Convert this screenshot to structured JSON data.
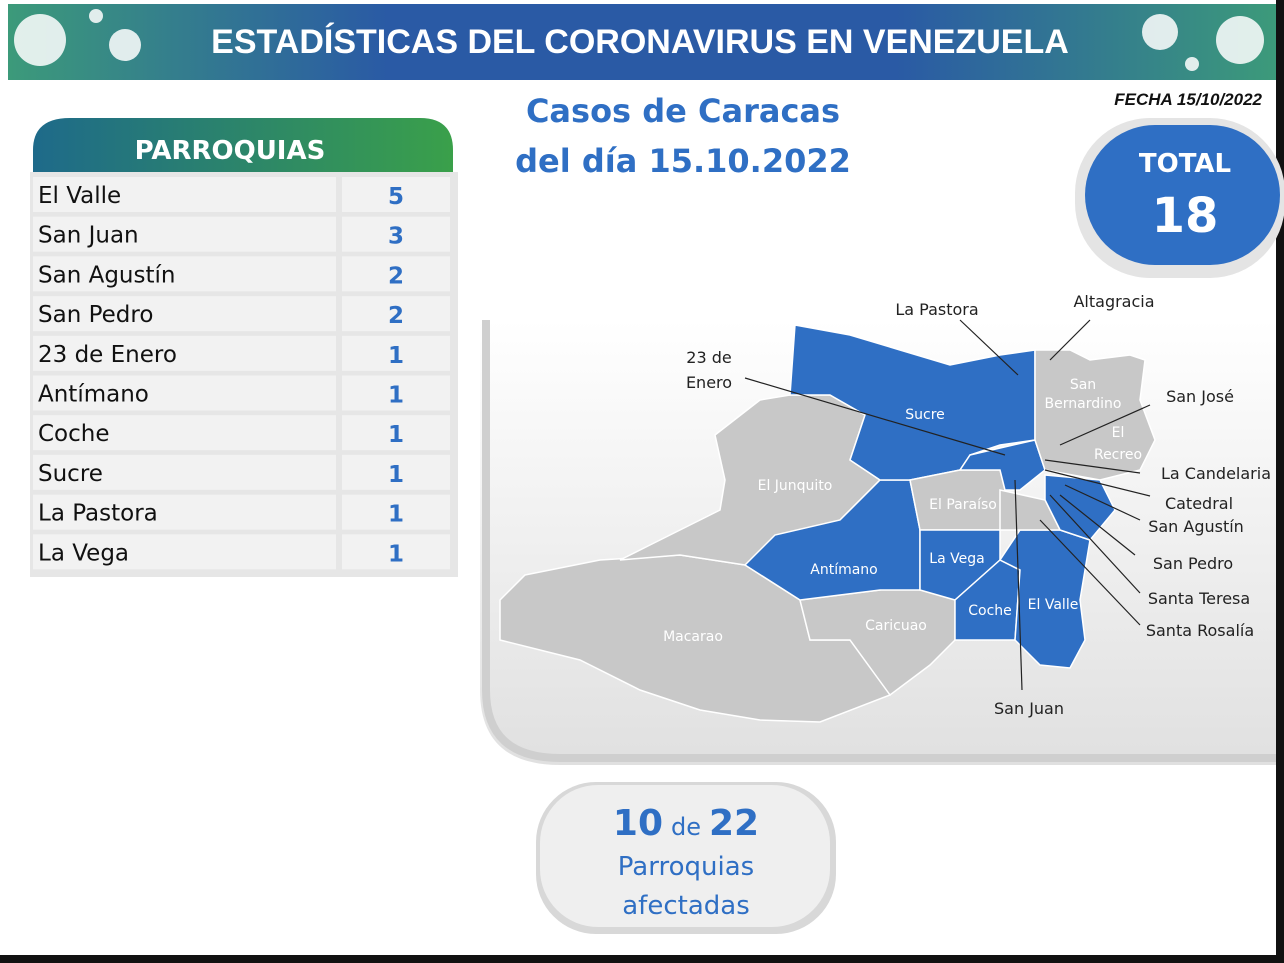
{
  "header": {
    "title": "ESTADÍSTICAS DEL CORONAVIRUS EN VENEZUELA"
  },
  "date": "FECHA 15/10/2022",
  "subtitle": [
    "Casos de Caracas",
    "del día 15.10.2022"
  ],
  "table": {
    "header": "PARROQUIAS",
    "rows": [
      [
        "El Valle",
        5
      ],
      [
        "San Juan",
        3
      ],
      [
        "San Agustín",
        2
      ],
      [
        "San Pedro",
        2
      ],
      [
        "23 de Enero",
        1
      ],
      [
        "Antímano",
        1
      ],
      [
        "Coche",
        1
      ],
      [
        "Sucre",
        1
      ],
      [
        "La Pastora",
        1
      ],
      [
        "La Vega",
        1
      ]
    ]
  },
  "total": {
    "label": "TOTAL",
    "value": 18
  },
  "summary": {
    "affected": 10,
    "connector": "de",
    "parishes": 22,
    "lines": [
      "Parroquias",
      "afectadas"
    ]
  },
  "map": {
    "labels": {
      "sucre": "Sucre",
      "el_junquito": "El Junquito",
      "el_paraiso": "El Paraíso",
      "antimano": "Antímano",
      "la_vega": "La Vega",
      "macarao": "Macarao",
      "caricuao": "Caricuao",
      "coche": "Coche",
      "el_valle": "El Valle",
      "san_bernardino": [
        "San",
        "Bernardino"
      ],
      "el_recreo": [
        "El",
        "Recreo"
      ],
      "la_pastora": "La Pastora",
      "altagracia": "Altagracia",
      "veintitres_de_enero": [
        "23 de",
        "Enero"
      ],
      "san_jose": "San José",
      "la_candelaria": "La Candelaria",
      "catedral": "Catedral",
      "san_agustin": "San Agustín",
      "san_pedro": "San Pedro",
      "santa_teresa": "Santa Teresa",
      "santa_rosalia": "Santa Rosalía",
      "san_juan": "San Juan"
    }
  }
}
